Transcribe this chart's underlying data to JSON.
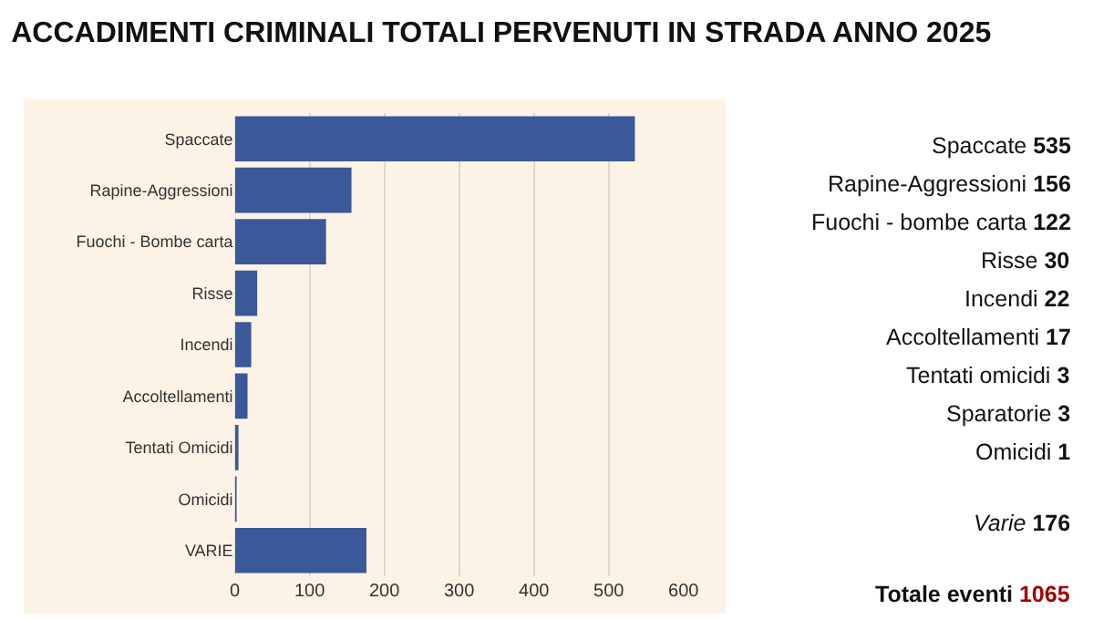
{
  "chart_data": {
    "type": "bar",
    "orientation": "horizontal",
    "title": "ACCADIMENTI CRIMINALI TOTALI PERVENUTI IN STRADA ANNO 2025",
    "categories": [
      "Spaccate",
      "Rapine-Aggressioni",
      "Fuochi - Bombe carta",
      "Risse",
      "Incendi",
      "Accoltellamenti",
      "Tentati Omicidi",
      "Omicidi",
      "VARIE"
    ],
    "values": [
      535,
      156,
      122,
      30,
      22,
      17,
      3,
      1,
      176
    ],
    "color": "#3b5998",
    "xlim": [
      0,
      600
    ],
    "xticks": [
      0,
      100,
      200,
      300,
      400,
      500,
      600
    ],
    "grid": "x",
    "annotations": [
      "Spaccate 535",
      "Rapine-Aggressioni 156",
      "Fuochi - bombe carta 122",
      "Risse 30",
      "Incendi 22",
      "Accoltellamenti 17",
      "Tentati omicidi 3",
      "Sparatorie 3",
      "Omicidi 1",
      "Varie 176",
      "Totale eventi 1065"
    ]
  }
}
